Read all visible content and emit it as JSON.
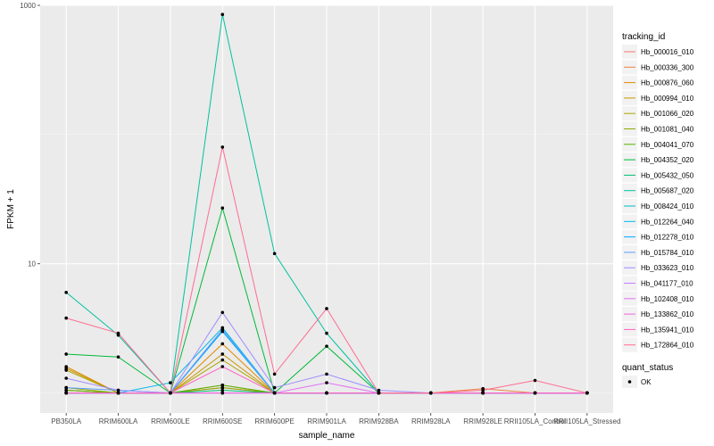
{
  "chart_data": {
    "type": "line",
    "xlabel": "sample_name",
    "ylabel": "FPKM + 1",
    "y_scale": "log10",
    "ylim": [
      0.7,
      1000
    ],
    "y_ticks": [
      {
        "value": 10,
        "label": "10"
      },
      {
        "value": 1000,
        "label": "1000"
      }
    ],
    "categories": [
      "PB350LA",
      "RRIM600LA",
      "RRIM600LE",
      "RRIM600SE",
      "RRIM600PE",
      "RRIM901LA",
      "RRIM928BA",
      "RRIM928LA",
      "RRIM928LE",
      "RRII105LA_Control",
      "RRII105LA_Stressed"
    ],
    "grid": true,
    "legend": {
      "position": "right",
      "title": "tracking_id",
      "quant_title": "quant_status",
      "quant_label": "OK"
    },
    "series": [
      {
        "name": "Hb_000016_010",
        "color": "#F8766D",
        "values": [
          1.05,
          1.0,
          1.0,
          1.1,
          1.0,
          1.0,
          1.0,
          1.0,
          1.0,
          1.0,
          1.0
        ]
      },
      {
        "name": "Hb_000336_300",
        "color": "#EE8042",
        "values": [
          1.05,
          1.0,
          1.0,
          1.15,
          1.0,
          1.0,
          1.0,
          1.0,
          1.08,
          1.0,
          1.0
        ]
      },
      {
        "name": "Hb_000876_060",
        "color": "#DE8C00",
        "values": [
          1.6,
          1.0,
          1.0,
          2.4,
          1.0,
          1.0,
          1.0,
          1.0,
          1.0,
          1.0,
          1.0
        ]
      },
      {
        "name": "Hb_000994_010",
        "color": "#C99800",
        "values": [
          1.55,
          1.0,
          1.0,
          2.0,
          1.0,
          1.0,
          1.0,
          1.0,
          1.0,
          1.0,
          1.0
        ]
      },
      {
        "name": "Hb_001066_020",
        "color": "#AFA100",
        "values": [
          1.5,
          1.0,
          1.0,
          1.8,
          1.0,
          1.0,
          1.0,
          1.0,
          1.0,
          1.0,
          1.0
        ]
      },
      {
        "name": "Hb_001081_040",
        "color": "#8BAB00",
        "values": [
          1.1,
          1.0,
          1.0,
          1.1,
          1.0,
          1.0,
          1.0,
          1.0,
          1.0,
          1.0,
          1.0
        ]
      },
      {
        "name": "Hb_004041_070",
        "color": "#53B400",
        "values": [
          1.05,
          1.0,
          1.0,
          1.15,
          1.0,
          1.0,
          1.0,
          1.0,
          1.0,
          1.0,
          1.0
        ]
      },
      {
        "name": "Hb_004352_020",
        "color": "#00BA38",
        "values": [
          2.0,
          1.9,
          1.0,
          27.0,
          1.0,
          2.3,
          1.0,
          1.0,
          1.0,
          1.0,
          1.0
        ]
      },
      {
        "name": "Hb_005432_050",
        "color": "#00BF74",
        "values": [
          1.0,
          1.0,
          1.0,
          1.05,
          1.0,
          1.0,
          1.0,
          1.0,
          1.0,
          1.0,
          1.0
        ]
      },
      {
        "name": "Hb_005687_020",
        "color": "#00C19F",
        "values": [
          6.0,
          2.8,
          1.0,
          850,
          12.0,
          2.9,
          1.0,
          1.0,
          1.0,
          1.0,
          1.0
        ]
      },
      {
        "name": "Hb_008424_010",
        "color": "#00BFC4",
        "values": [
          1.0,
          1.0,
          1.0,
          3.0,
          1.0,
          1.0,
          1.0,
          1.0,
          1.0,
          1.0,
          1.0
        ]
      },
      {
        "name": "Hb_012264_040",
        "color": "#00B8E7",
        "values": [
          1.0,
          1.0,
          1.2,
          3.2,
          1.0,
          1.0,
          1.0,
          1.0,
          1.0,
          1.0,
          1.0
        ]
      },
      {
        "name": "Hb_012278_010",
        "color": "#00A9FF",
        "values": [
          1.0,
          1.0,
          1.0,
          3.0,
          1.0,
          1.0,
          1.0,
          1.0,
          1.0,
          1.0,
          1.0
        ]
      },
      {
        "name": "Hb_015784_010",
        "color": "#619CFF",
        "values": [
          1.1,
          1.05,
          1.0,
          3.1,
          1.0,
          1.0,
          1.0,
          1.0,
          1.0,
          1.0,
          1.0
        ]
      },
      {
        "name": "Hb_033623_010",
        "color": "#9F8CFF",
        "values": [
          1.3,
          1.05,
          1.0,
          4.2,
          1.1,
          1.4,
          1.05,
          1.0,
          1.0,
          1.0,
          1.0
        ]
      },
      {
        "name": "Hb_041177_010",
        "color": "#C77CFF",
        "values": [
          1.0,
          1.0,
          1.0,
          1.0,
          1.0,
          1.0,
          1.0,
          1.0,
          1.0,
          1.0,
          1.0
        ]
      },
      {
        "name": "Hb_102408_010",
        "color": "#E46FF5",
        "values": [
          1.0,
          1.0,
          1.0,
          1.0,
          1.0,
          1.2,
          1.0,
          1.0,
          1.0,
          1.0,
          1.0
        ]
      },
      {
        "name": "Hb_133862_010",
        "color": "#F364DC",
        "values": [
          1.0,
          1.0,
          1.0,
          1.0,
          1.0,
          1.0,
          1.0,
          1.0,
          1.0,
          1.0,
          1.0
        ]
      },
      {
        "name": "Hb_135941_010",
        "color": "#FF61C3",
        "values": [
          1.0,
          1.0,
          1.0,
          1.6,
          1.0,
          1.0,
          1.0,
          1.0,
          1.0,
          1.0,
          1.0
        ]
      },
      {
        "name": "Hb_172864_010",
        "color": "#FF6C91",
        "values": [
          3.8,
          2.9,
          1.0,
          80.0,
          1.4,
          4.5,
          1.0,
          1.0,
          1.05,
          1.25,
          1.0
        ]
      }
    ]
  }
}
